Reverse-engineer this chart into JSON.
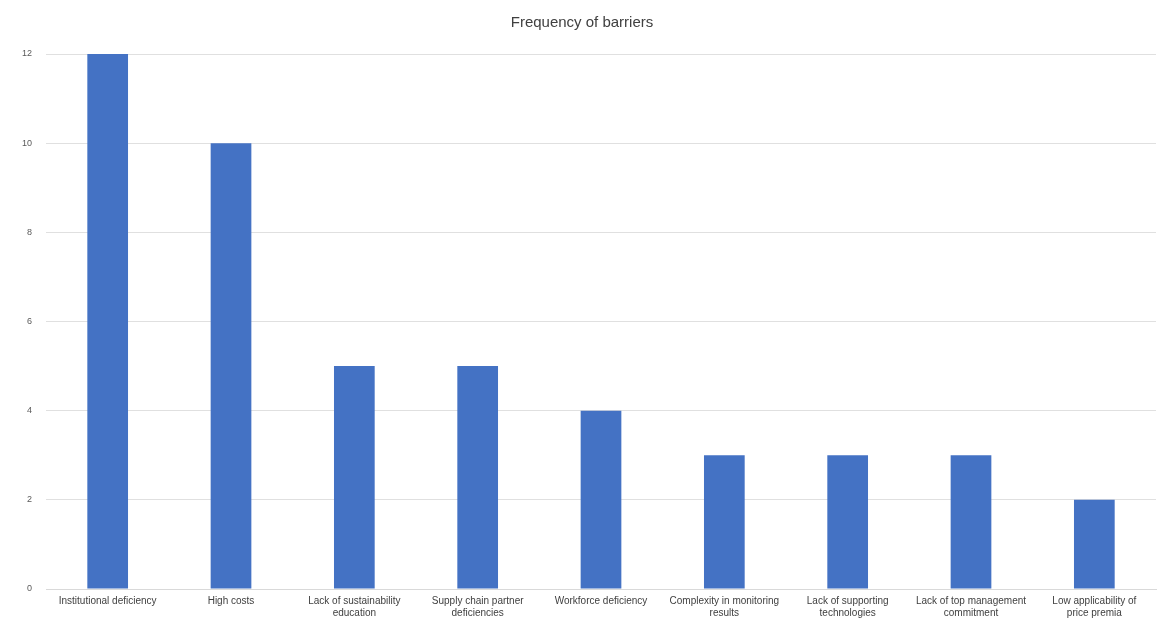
{
  "chart_data": {
    "type": "bar",
    "title": "Frequency of barriers",
    "categories": [
      "Institutional deficiency",
      "High costs",
      "Lack of sustainability education",
      "Supply chain partner deficiencies",
      "Workforce deficiency",
      "Complexity in monitoring results",
      "Lack of supporting technologies",
      "Lack of top management commitment",
      "Low applicability of price premia"
    ],
    "values": [
      12,
      10,
      5,
      5,
      4,
      3,
      3,
      3,
      2
    ],
    "color": "#4472c4",
    "ylim": [
      0,
      12
    ],
    "yticks": [
      0,
      2,
      4,
      6,
      8,
      10,
      12
    ],
    "grid": "y",
    "legend": false
  }
}
